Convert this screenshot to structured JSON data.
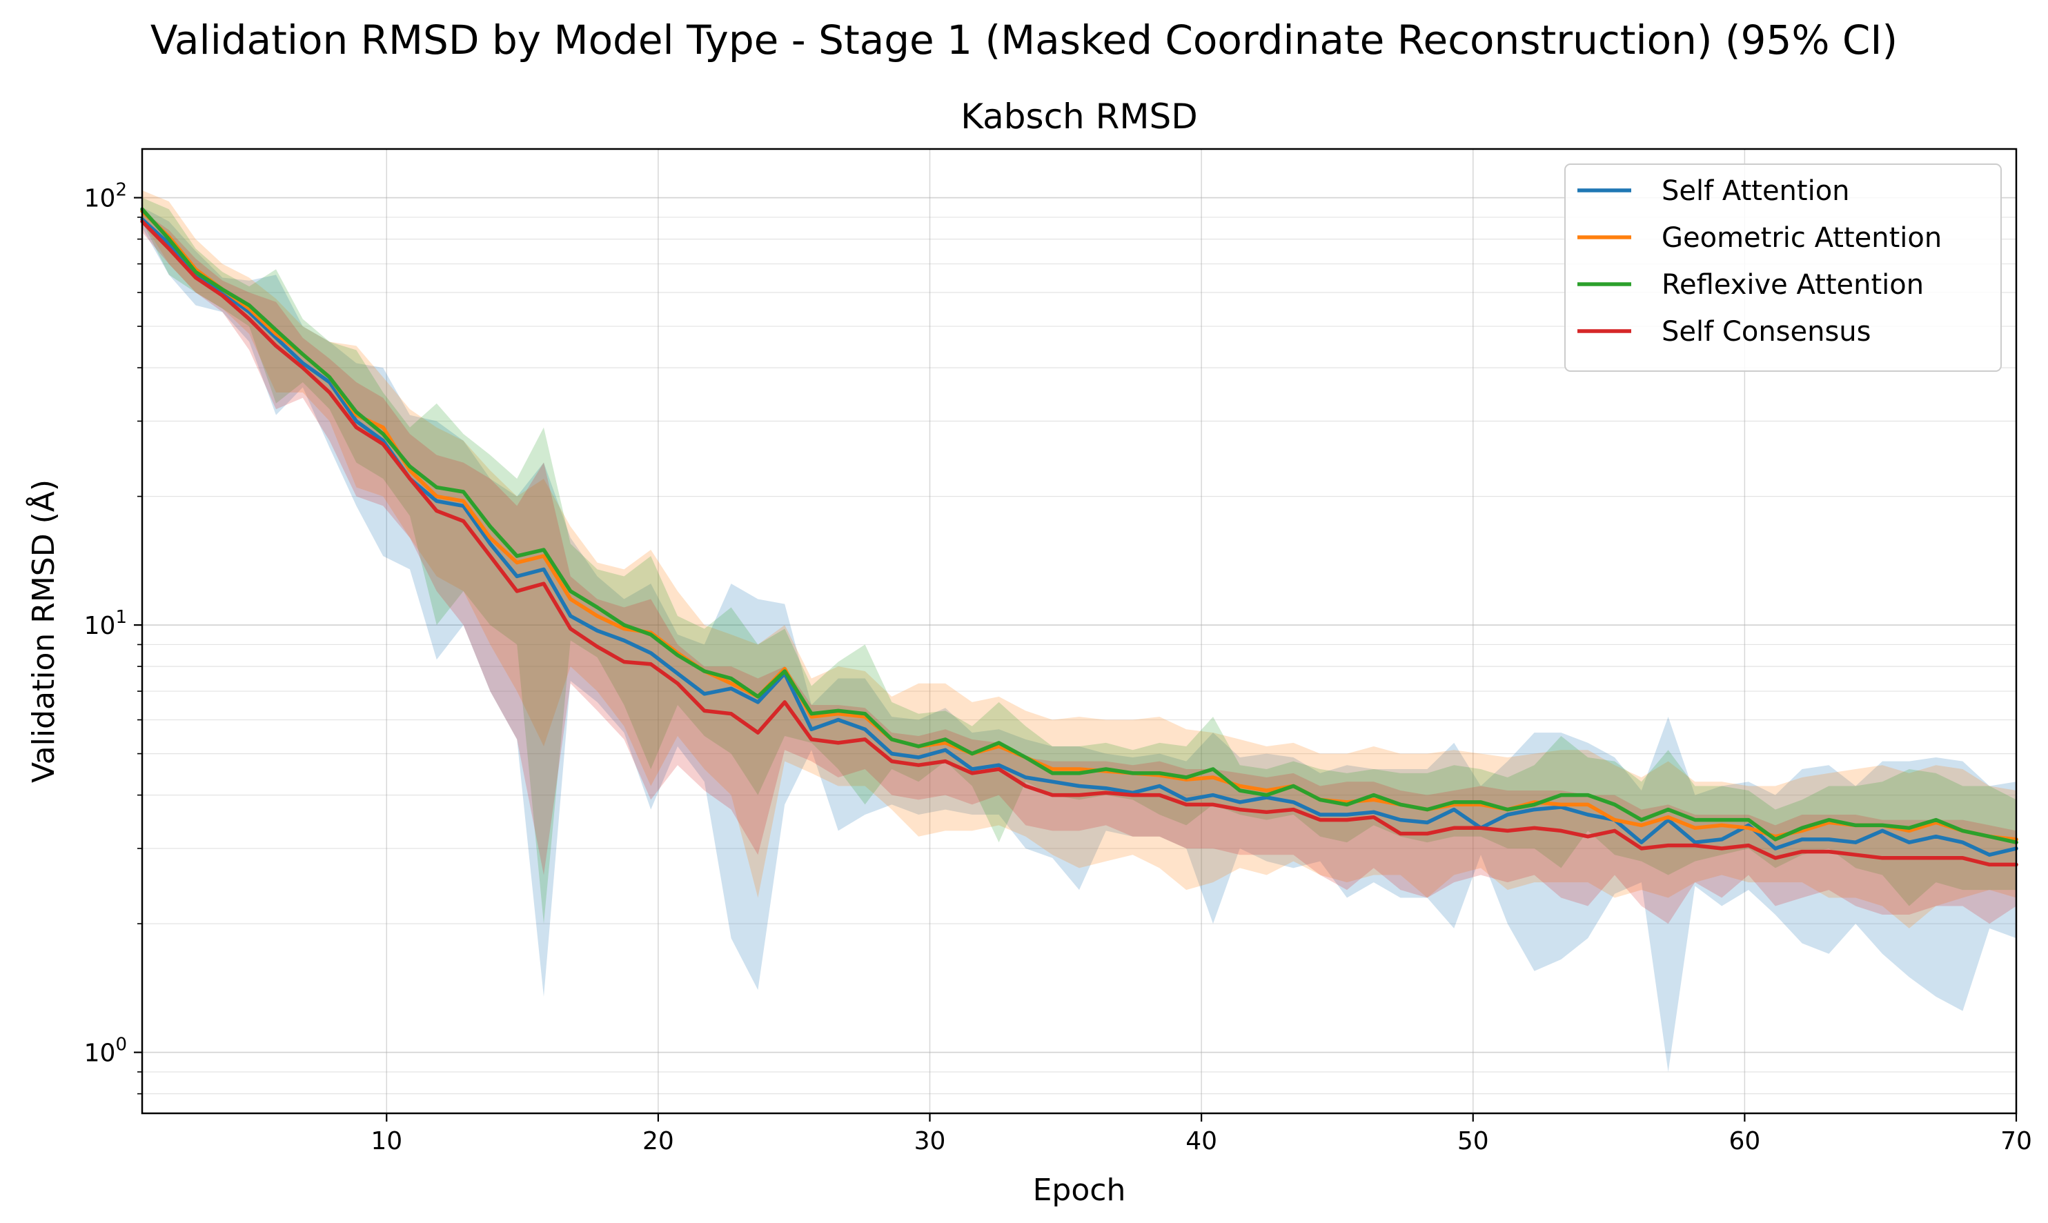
{
  "chart_data": {
    "type": "line",
    "title": "Validation RMSD by Model Type - Stage 1 (Masked Coordinate Reconstruction) (95% CI)",
    "subtitle": "Kabsch RMSD",
    "xlabel": "Epoch",
    "ylabel": "Validation RMSD (Å)",
    "yscale": "log",
    "xlim": [
      1,
      70
    ],
    "ylim": [
      0.72,
      130
    ],
    "xticks": [
      10,
      20,
      30,
      40,
      50,
      60,
      70
    ],
    "yticks": [
      {
        "value": 1,
        "base": "10",
        "exp": "0"
      },
      {
        "value": 10,
        "base": "10",
        "exp": "1"
      },
      {
        "value": 100,
        "base": "10",
        "exp": "2"
      }
    ],
    "grid": true,
    "legend_position": "top-right",
    "series": [
      {
        "name": "Self Attention",
        "color": "#1f77b4",
        "values": [
          89,
          78,
          66,
          60,
          54,
          47,
          41,
          37,
          30,
          27,
          22,
          19.5,
          19,
          15.5,
          13,
          13.5,
          10.5,
          9.7,
          9.2,
          8.6,
          7.7,
          6.9,
          7.1,
          6.6,
          7.7,
          5.7,
          6.0,
          5.7,
          5.0,
          4.9,
          5.1,
          4.6,
          4.7,
          4.4,
          4.3,
          4.2,
          4.15,
          4.05,
          4.2,
          3.9,
          4.0,
          3.85,
          3.95,
          3.85,
          3.6,
          3.6,
          3.65,
          3.5,
          3.45,
          3.7,
          3.35,
          3.6,
          3.7,
          3.75,
          3.6,
          3.5,
          3.1,
          3.5,
          3.1,
          3.15,
          3.4,
          3.0,
          3.15,
          3.15,
          3.1,
          3.3,
          3.1,
          3.2,
          3.1,
          2.9,
          3.0
        ],
        "ci_low": [
          85,
          66,
          56,
          54,
          46,
          31,
          36,
          26,
          19,
          14.5,
          13.5,
          8.3,
          10,
          7,
          5.4,
          1.35,
          7.4,
          6.6,
          5.6,
          3.7,
          5.2,
          4.3,
          1.85,
          1.4,
          3.8,
          5.1,
          3.3,
          3.6,
          3.8,
          3.6,
          3.7,
          3.6,
          3.6,
          3.0,
          2.85,
          2.4,
          3.3,
          3.2,
          3.2,
          3.0,
          2.0,
          3.0,
          2.8,
          2.7,
          2.8,
          2.3,
          2.5,
          2.3,
          2.3,
          1.95,
          2.9,
          2.0,
          1.55,
          1.65,
          1.85,
          2.35,
          2.5,
          0.9,
          2.45,
          2.2,
          2.4,
          2.1,
          1.8,
          1.7,
          2.0,
          1.7,
          1.5,
          1.35,
          1.25,
          1.95,
          1.85
        ],
        "ci_high": [
          95,
          88,
          75,
          65,
          64,
          66,
          50,
          46,
          41,
          40,
          31,
          30,
          27,
          22,
          20,
          24,
          16,
          13,
          11.5,
          12.5,
          9.5,
          9.0,
          12.5,
          11.5,
          11.2,
          6.5,
          7.5,
          7.5,
          6.1,
          6.0,
          6.4,
          5.6,
          5.7,
          5.4,
          5.2,
          5.2,
          5.0,
          4.9,
          5.0,
          4.8,
          5.6,
          4.9,
          5.0,
          4.9,
          4.5,
          4.7,
          4.6,
          4.6,
          4.6,
          5.3,
          4.2,
          4.8,
          5.6,
          5.6,
          5.3,
          4.9,
          4.1,
          6.1,
          4.0,
          4.2,
          4.3,
          4.0,
          4.6,
          4.7,
          4.2,
          4.8,
          4.8,
          4.9,
          4.8,
          4.2,
          4.3
        ]
      },
      {
        "name": "Geometric Attention",
        "color": "#ff7f0e",
        "values": [
          93,
          81,
          68,
          61,
          55,
          48,
          43,
          38,
          31,
          29,
          23,
          20,
          19.5,
          16,
          14,
          14.5,
          11.5,
          10.5,
          9.8,
          9.6,
          8.6,
          7.8,
          7.3,
          6.8,
          7.9,
          6.1,
          6.2,
          6.1,
          5.4,
          5.2,
          5.3,
          5.0,
          5.2,
          4.9,
          4.6,
          4.6,
          4.55,
          4.5,
          4.45,
          4.35,
          4.4,
          4.2,
          4.1,
          4.2,
          3.9,
          3.85,
          3.9,
          3.8,
          3.7,
          3.8,
          3.8,
          3.7,
          3.85,
          3.8,
          3.8,
          3.5,
          3.4,
          3.55,
          3.35,
          3.4,
          3.35,
          3.2,
          3.3,
          3.45,
          3.4,
          3.4,
          3.3,
          3.45,
          3.3,
          3.2,
          3.15
        ],
        "ci_low": [
          88,
          70,
          60,
          55,
          48,
          35,
          35,
          30,
          21,
          20,
          16,
          13,
          12,
          9,
          7,
          5.2,
          8.0,
          7.0,
          5.8,
          4.2,
          5.5,
          4.6,
          4.0,
          2.3,
          4.8,
          4.5,
          4.2,
          4.2,
          3.7,
          3.2,
          3.3,
          3.3,
          3.4,
          3.2,
          2.9,
          2.7,
          2.8,
          2.9,
          2.7,
          2.4,
          2.5,
          2.7,
          2.6,
          2.8,
          2.6,
          2.5,
          2.6,
          2.6,
          2.3,
          2.6,
          2.7,
          2.4,
          2.5,
          2.5,
          2.5,
          2.3,
          2.4,
          2.3,
          2.5,
          2.6,
          2.5,
          2.5,
          2.5,
          2.3,
          2.3,
          2.2,
          1.95,
          2.2,
          2.3,
          2.4,
          2.3
        ],
        "ci_high": [
          104,
          98,
          80,
          70,
          65,
          58,
          50,
          46,
          45,
          38,
          32,
          29,
          27,
          23,
          20,
          22,
          17,
          14,
          13.5,
          15,
          12,
          10,
          9.5,
          9.0,
          10,
          7.5,
          8.0,
          7.8,
          6.8,
          7.3,
          7.3,
          6.6,
          6.8,
          6.3,
          6.0,
          6.1,
          6.0,
          6.0,
          6.1,
          5.7,
          5.6,
          5.4,
          5.2,
          5.3,
          5.0,
          5.0,
          5.2,
          5.0,
          5.0,
          5.1,
          5.0,
          4.9,
          5.0,
          5.1,
          5.1,
          4.7,
          4.4,
          4.8,
          4.3,
          4.3,
          4.2,
          4.2,
          4.4,
          4.5,
          4.6,
          4.7,
          4.5,
          4.7,
          4.6,
          4.2,
          4.1
        ]
      },
      {
        "name": "Reflexive Attention",
        "color": "#2ca02c",
        "values": [
          94,
          80,
          67,
          61,
          56,
          49,
          43,
          38,
          31.5,
          28,
          23.5,
          21,
          20.5,
          17,
          14.5,
          15,
          12,
          11,
          10,
          9.5,
          8.5,
          7.8,
          7.5,
          6.8,
          7.8,
          6.2,
          6.3,
          6.2,
          5.4,
          5.2,
          5.4,
          5.0,
          5.3,
          4.9,
          4.5,
          4.5,
          4.6,
          4.5,
          4.5,
          4.4,
          4.6,
          4.1,
          4.0,
          4.2,
          3.9,
          3.8,
          4.0,
          3.8,
          3.7,
          3.85,
          3.85,
          3.7,
          3.8,
          4.0,
          4.0,
          3.8,
          3.5,
          3.7,
          3.5,
          3.5,
          3.5,
          3.15,
          3.35,
          3.5,
          3.4,
          3.4,
          3.35,
          3.5,
          3.3,
          3.2,
          3.1
        ],
        "ci_low": [
          88,
          66,
          60,
          55,
          50,
          33,
          37,
          32,
          24,
          22,
          18,
          10,
          12,
          10,
          9,
          2.0,
          9.2,
          8.4,
          6.5,
          4.6,
          6.5,
          5.5,
          5.0,
          4.0,
          5.5,
          5.3,
          4.6,
          3.8,
          4.6,
          4.3,
          4.8,
          4.2,
          3.1,
          4.3,
          4.0,
          3.9,
          4.0,
          3.9,
          3.6,
          3.4,
          3.8,
          3.6,
          3.5,
          3.6,
          3.2,
          3.1,
          3.4,
          3.2,
          3.1,
          3.2,
          3.2,
          3.0,
          3.0,
          2.7,
          3.3,
          2.9,
          2.8,
          2.6,
          2.8,
          2.9,
          3.0,
          2.7,
          2.9,
          3.0,
          2.7,
          2.6,
          2.2,
          2.5,
          2.4,
          2.4,
          2.4
        ],
        "ci_high": [
          100,
          94,
          76,
          67,
          62,
          68,
          52,
          46,
          44,
          35,
          29,
          33,
          28,
          25,
          22,
          29,
          15.5,
          13.5,
          13,
          14.5,
          10.5,
          9.8,
          11,
          9.0,
          9.8,
          7.2,
          8.2,
          9.0,
          6.6,
          6.2,
          6.3,
          5.8,
          6.6,
          5.8,
          5.2,
          5.2,
          5.3,
          5.1,
          5.3,
          5.2,
          6.1,
          4.7,
          4.6,
          4.8,
          4.6,
          4.5,
          4.6,
          4.5,
          4.5,
          4.7,
          4.6,
          4.4,
          4.7,
          5.5,
          4.9,
          4.8,
          4.3,
          5.1,
          4.2,
          4.2,
          4.1,
          3.7,
          3.9,
          4.2,
          4.2,
          4.3,
          4.6,
          4.5,
          4.2,
          4.2,
          3.9
        ]
      },
      {
        "name": "Self Consensus",
        "color": "#d62728",
        "values": [
          88,
          76,
          65,
          59,
          52,
          45,
          40,
          35,
          29,
          26.5,
          22,
          18.5,
          17.5,
          14.5,
          12,
          12.5,
          9.8,
          8.9,
          8.2,
          8.1,
          7.3,
          6.3,
          6.2,
          5.6,
          6.6,
          5.4,
          5.3,
          5.4,
          4.8,
          4.7,
          4.8,
          4.5,
          4.6,
          4.2,
          4.0,
          4.0,
          4.05,
          4.0,
          4.0,
          3.8,
          3.8,
          3.7,
          3.65,
          3.7,
          3.5,
          3.5,
          3.55,
          3.25,
          3.25,
          3.35,
          3.35,
          3.3,
          3.35,
          3.3,
          3.2,
          3.3,
          3.0,
          3.05,
          3.05,
          3.0,
          3.05,
          2.85,
          2.95,
          2.95,
          2.9,
          2.85,
          2.85,
          2.85,
          2.85,
          2.75,
          2.75
        ],
        "ci_low": [
          83,
          70,
          60,
          54,
          44,
          32,
          34,
          27,
          20,
          19,
          16,
          12,
          10,
          7,
          5.4,
          2.6,
          7.3,
          6.3,
          5.4,
          3.9,
          4.7,
          4.1,
          3.7,
          2.9,
          5.1,
          4.8,
          4.4,
          4.6,
          4.0,
          3.9,
          4.0,
          3.8,
          4.0,
          3.4,
          3.3,
          3.3,
          3.4,
          3.2,
          3.2,
          3.0,
          3.0,
          2.9,
          2.9,
          2.9,
          2.6,
          2.4,
          2.7,
          2.4,
          2.3,
          2.5,
          2.6,
          2.5,
          2.6,
          2.3,
          2.2,
          2.6,
          2.2,
          2.0,
          2.5,
          2.3,
          2.6,
          2.2,
          2.3,
          2.4,
          2.2,
          2.1,
          2.1,
          2.2,
          2.2,
          2.0,
          2.2
        ],
        "ci_high": [
          93,
          84,
          72,
          64,
          60,
          57,
          47,
          42,
          37,
          34,
          28,
          25,
          24,
          22,
          19,
          24,
          13,
          11.5,
          11,
          11.5,
          9.0,
          8.0,
          8.0,
          7.5,
          8.0,
          6.5,
          6.5,
          6.4,
          5.6,
          5.5,
          5.7,
          5.4,
          5.3,
          4.9,
          4.8,
          4.8,
          4.8,
          4.7,
          4.8,
          4.6,
          4.6,
          4.5,
          4.4,
          4.5,
          4.2,
          4.3,
          4.3,
          4.1,
          4.0,
          4.1,
          4.2,
          4.1,
          4.1,
          4.1,
          4.0,
          4.0,
          3.7,
          3.8,
          3.6,
          3.6,
          3.6,
          3.4,
          3.6,
          3.6,
          3.6,
          3.5,
          3.5,
          3.5,
          3.5,
          3.4,
          3.3
        ]
      }
    ]
  }
}
